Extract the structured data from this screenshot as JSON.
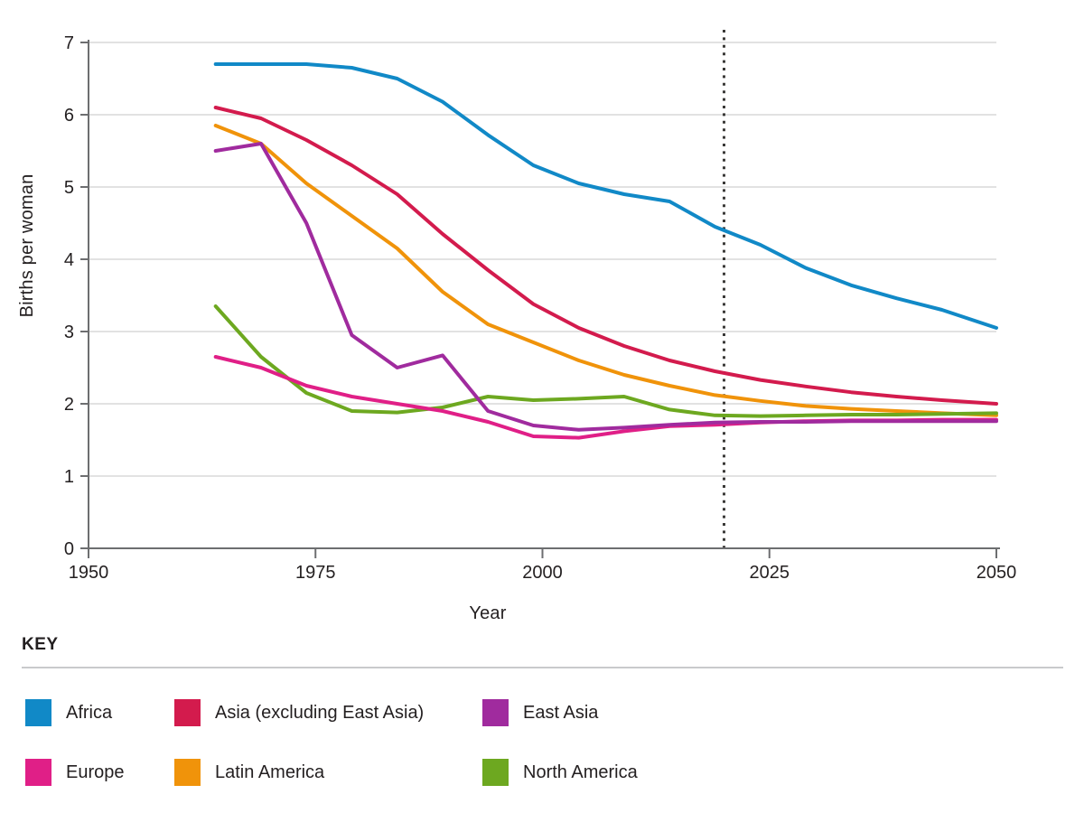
{
  "chart_data": {
    "type": "line",
    "title": "",
    "xlabel": "Year",
    "ylabel": "Births per woman",
    "xlim": [
      1950,
      2050
    ],
    "ylim": [
      0,
      7
    ],
    "x_ticks": [
      1950,
      1975,
      2000,
      2025,
      2050
    ],
    "y_ticks": [
      0,
      1,
      2,
      3,
      4,
      5,
      6,
      7
    ],
    "grid": "horizontal",
    "projection_divider_year": 2020,
    "years": [
      1964,
      1969,
      1974,
      1979,
      1984,
      1989,
      1994,
      1999,
      2004,
      2009,
      2014,
      2019,
      2024,
      2029,
      2034,
      2039,
      2044,
      2050
    ],
    "series": [
      {
        "name": "Africa",
        "color": "#1189c7",
        "values": [
          6.7,
          6.7,
          6.7,
          6.65,
          6.5,
          6.18,
          5.72,
          5.3,
          5.05,
          4.9,
          4.8,
          4.45,
          4.2,
          3.88,
          3.64,
          3.46,
          3.3,
          3.05
        ]
      },
      {
        "name": "Asia (excluding East Asia)",
        "color": "#d31b4d",
        "values": [
          6.1,
          5.95,
          5.65,
          5.3,
          4.9,
          4.35,
          3.85,
          3.38,
          3.05,
          2.8,
          2.6,
          2.45,
          2.33,
          2.24,
          2.16,
          2.1,
          2.05,
          2.0
        ]
      },
      {
        "name": "East Asia",
        "color": "#a02b9e",
        "values": [
          5.5,
          5.6,
          4.5,
          2.95,
          2.5,
          2.67,
          1.9,
          1.7,
          1.64,
          1.67,
          1.71,
          1.74,
          1.75,
          1.75,
          1.76,
          1.76,
          1.76,
          1.76
        ]
      },
      {
        "name": "Europe",
        "color": "#e01f87",
        "values": [
          2.65,
          2.5,
          2.25,
          2.1,
          2.0,
          1.9,
          1.75,
          1.55,
          1.53,
          1.62,
          1.69,
          1.71,
          1.74,
          1.76,
          1.77,
          1.77,
          1.78,
          1.78
        ]
      },
      {
        "name": "Latin America",
        "color": "#f0930a",
        "values": [
          5.85,
          5.6,
          5.05,
          4.6,
          4.15,
          3.55,
          3.1,
          2.85,
          2.6,
          2.4,
          2.25,
          2.12,
          2.04,
          1.97,
          1.93,
          1.9,
          1.87,
          1.84
        ]
      },
      {
        "name": "North America",
        "color": "#6da820",
        "values": [
          3.35,
          2.65,
          2.15,
          1.9,
          1.88,
          1.95,
          2.1,
          2.05,
          2.07,
          2.1,
          1.92,
          1.84,
          1.83,
          1.84,
          1.85,
          1.85,
          1.86,
          1.87
        ]
      }
    ],
    "legend": {
      "title": "KEY",
      "position": "bottom",
      "order": [
        "Africa",
        "Asia (excluding East Asia)",
        "East Asia",
        "Europe",
        "Latin America",
        "North America"
      ]
    },
    "colors": {
      "gridline": "#d9d9d9",
      "axis": "#6d6e70",
      "projection_dots": "#3a3937",
      "text": "#231f20"
    }
  }
}
